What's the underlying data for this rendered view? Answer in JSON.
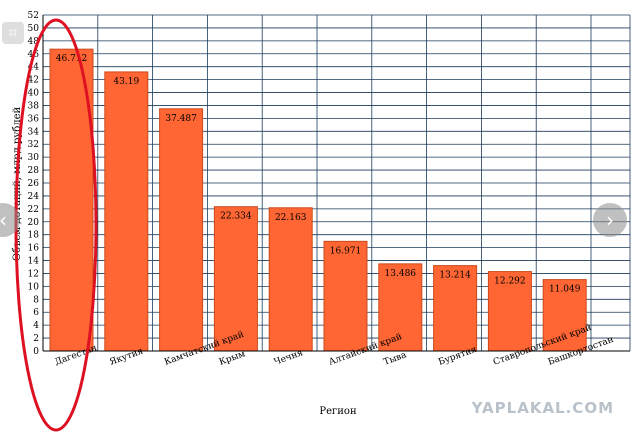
{
  "chart_data": {
    "type": "bar",
    "categories": [
      "Дагестан",
      "Якутия",
      "Камчатский край",
      "Крым",
      "Чечня",
      "Алтайский край",
      "Тыва",
      "Бурятия",
      "Ставропольский край",
      "Башкортостан"
    ],
    "values": [
      46.712,
      43.19,
      37.487,
      22.334,
      22.163,
      16.971,
      13.486,
      13.214,
      12.292,
      11.049
    ],
    "value_labels": [
      "46.712",
      "43.19",
      "37.487",
      "22.334",
      "22.163",
      "16.971",
      "13.486",
      "13.214",
      "12.292",
      "11.049"
    ],
    "xlabel": "Регион",
    "ylabel": "Объем дотаций, млрд рублей",
    "ylim": [
      0,
      52
    ],
    "yticks": [
      0,
      2,
      4,
      6,
      8,
      10,
      12,
      14,
      16,
      18,
      20,
      22,
      24,
      26,
      28,
      30,
      32,
      34,
      36,
      38,
      40,
      42,
      44,
      46,
      48,
      50,
      52
    ],
    "grid": true,
    "colors": {
      "bar": "#ff6633",
      "bar_edge": "#cc4a1c",
      "grid": "#1a3a5a",
      "highlight_ellipse": "#dd1122"
    }
  },
  "watermark": "YAPLAKAL.COM",
  "icons": {
    "crop": "crop-icon",
    "prev": "chevron-left-icon",
    "next": "chevron-right-icon"
  },
  "glyphs": {
    "crop": "⌗",
    "prev": "‹",
    "next": "›"
  }
}
